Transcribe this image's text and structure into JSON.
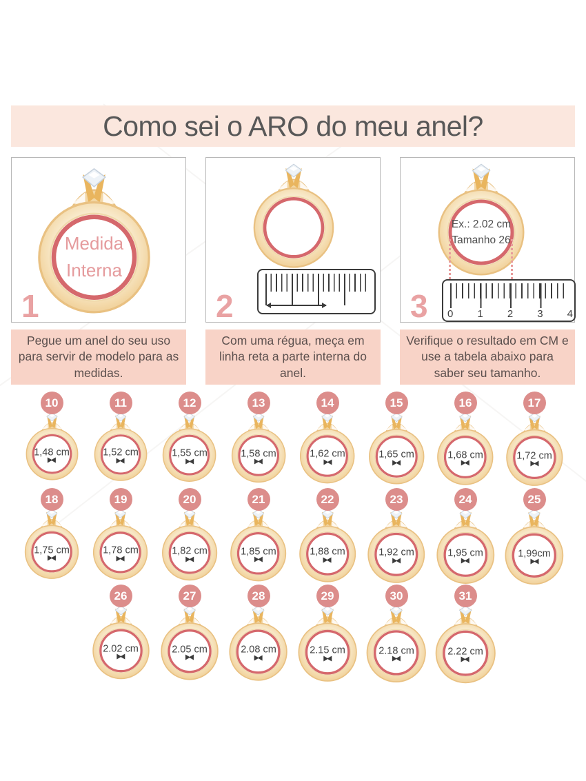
{
  "title": "Como sei o ARO do meu anel?",
  "steps": [
    {
      "number": "1",
      "ring_text": [
        "Medida",
        "Interna"
      ],
      "caption": "Pegue um anel do seu uso para servir de modelo para as medidas."
    },
    {
      "number": "2",
      "caption": "Com uma régua, meça em linha reta a parte interna do anel."
    },
    {
      "number": "3",
      "ring_text": [
        "Ex.: 2.02 cm",
        "Tamanho 26"
      ],
      "ruler_numbers": [
        "0",
        "1",
        "2",
        "3",
        "4"
      ],
      "caption": "Verifique o resultado em CM e use a tabela abaixo para saber seu tamanho."
    }
  ],
  "size_table": {
    "rows": [
      [
        {
          "size": "10",
          "diameter": "1,48 cm"
        },
        {
          "size": "11",
          "diameter": "1,52 cm"
        },
        {
          "size": "12",
          "diameter": "1,55 cm"
        },
        {
          "size": "13",
          "diameter": "1,58 cm"
        },
        {
          "size": "14",
          "diameter": "1,62 cm"
        },
        {
          "size": "15",
          "diameter": "1,65 cm"
        },
        {
          "size": "16",
          "diameter": "1,68 cm"
        },
        {
          "size": "17",
          "diameter": "1,72 cm"
        }
      ],
      [
        {
          "size": "18",
          "diameter": "1,75 cm"
        },
        {
          "size": "19",
          "diameter": "1,78 cm"
        },
        {
          "size": "20",
          "diameter": "1,82 cm"
        },
        {
          "size": "21",
          "diameter": "1,85 cm"
        },
        {
          "size": "22",
          "diameter": "1,88 cm"
        },
        {
          "size": "23",
          "diameter": "1,92 cm"
        },
        {
          "size": "24",
          "diameter": "1,95 cm"
        },
        {
          "size": "25",
          "diameter": "1,99cm"
        }
      ],
      [
        {
          "size": "26",
          "diameter": "2.02 cm"
        },
        {
          "size": "27",
          "diameter": "2.05 cm"
        },
        {
          "size": "28",
          "diameter": "2.08 cm"
        },
        {
          "size": "29",
          "diameter": "2.15 cm"
        },
        {
          "size": "30",
          "diameter": "2.18 cm"
        },
        {
          "size": "31",
          "diameter": "2.22 cm"
        }
      ]
    ]
  },
  "colors": {
    "banner_bg": "#fbe7de",
    "caption_bg": "#f8d3c7",
    "badge_bg": "#dc8d8b",
    "accent_pink": "#e9a2a3",
    "ring_red": "#d5686c",
    "gold_light": "#f6e0ba",
    "gold_dark": "#e9c182",
    "text_dark": "#5c504e"
  }
}
